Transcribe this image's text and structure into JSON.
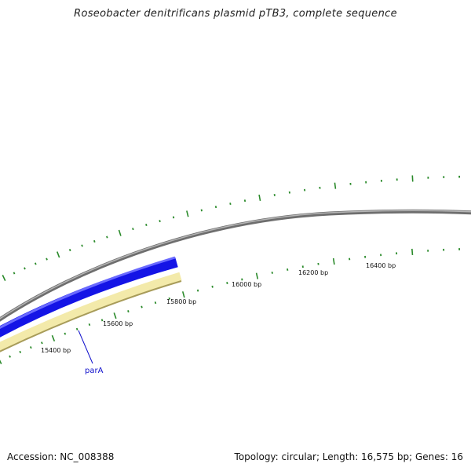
{
  "title": "Roseobacter denitrificans plasmid pTB3, complete sequence",
  "footer": {
    "accession": "Accession: NC_008388",
    "summary": "Topology: circular; Length: 16,575 bp; Genes: 16"
  },
  "scale": {
    "labels": [
      "15400 bp",
      "15600 bp",
      "15800 bp",
      "16000 bp",
      "16200 bp",
      "16400 bp"
    ]
  },
  "genes": [
    {
      "name": "parA",
      "strand": "forward",
      "color": "#1414e6"
    },
    {
      "name": "",
      "strand": "reverse",
      "color": "#f0e6a0"
    }
  ],
  "colors": {
    "backbone": "#7a7a7a",
    "tick": "#2a8a2a",
    "gene_forward": "#1414e6",
    "gene_reverse": "#f0e6a0",
    "label_line": "#1010cc"
  }
}
